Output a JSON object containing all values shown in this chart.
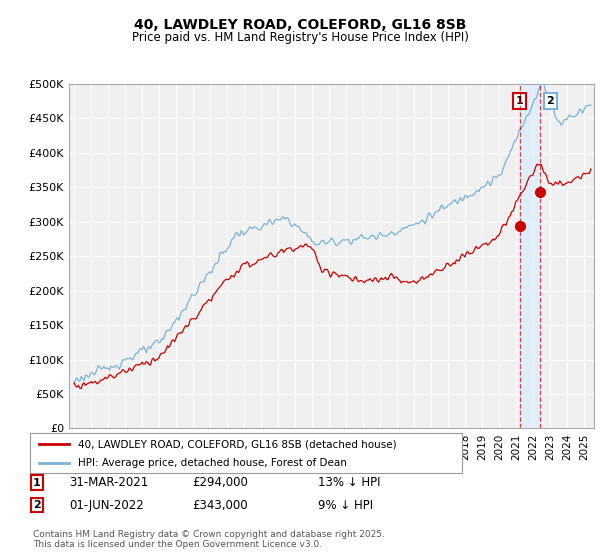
{
  "title": "40, LAWDLEY ROAD, COLEFORD, GL16 8SB",
  "subtitle": "Price paid vs. HM Land Registry's House Price Index (HPI)",
  "ylim": [
    0,
    500000
  ],
  "xlim_start": 1994.7,
  "xlim_end": 2025.6,
  "legend_entry1": "40, LAWDLEY ROAD, COLEFORD, GL16 8SB (detached house)",
  "legend_entry2": "HPI: Average price, detached house, Forest of Dean",
  "annotation1_date": "31-MAR-2021",
  "annotation1_price": "£294,000",
  "annotation1_hpi": "13% ↓ HPI",
  "annotation2_date": "01-JUN-2022",
  "annotation2_price": "£343,000",
  "annotation2_hpi": "9% ↓ HPI",
  "footer": "Contains HM Land Registry data © Crown copyright and database right 2025.\nThis data is licensed under the Open Government Licence v3.0.",
  "hpi_color": "#7ab4d8",
  "price_color": "#cc0000",
  "vline_color": "#cc0000",
  "shade_color": "#ddeeff",
  "point1_x": 2021.25,
  "point1_y": 294000,
  "point2_x": 2022.42,
  "point2_y": 343000,
  "bg_color": "#f0f0f0"
}
